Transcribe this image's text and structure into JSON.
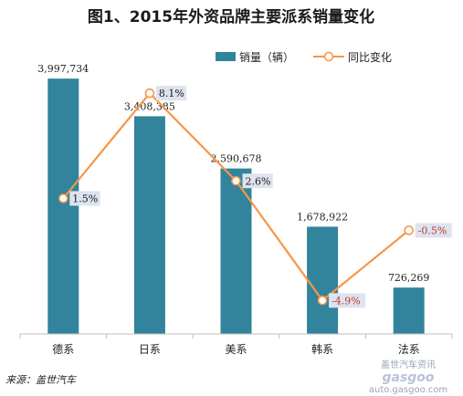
{
  "chart_data": {
    "type": "bar",
    "title": "图1、2015年外资品牌主要派系销量变化",
    "categories": [
      "德系",
      "日系",
      "美系",
      "韩系",
      "法系"
    ],
    "series": [
      {
        "name": "销量（辆）",
        "type": "bar",
        "values": [
          3997734,
          3408385,
          2590678,
          1678922,
          726269
        ],
        "labels": [
          "3,997,734",
          "3,408,385",
          "2,590,678",
          "1,678,922",
          "726,269"
        ],
        "color": "#31849b"
      },
      {
        "name": "同比变化",
        "type": "line",
        "values": [
          1.5,
          8.1,
          2.6,
          -4.9,
          -0.5
        ],
        "labels": [
          "1.5%",
          "8.1%",
          "2.6%",
          "-4.9%",
          "-0.5%"
        ],
        "color": "#f79646"
      }
    ],
    "ylim": [
      0,
      4000000
    ],
    "y2lim": [
      -7,
      12
    ],
    "grid": false,
    "legend": "top-right"
  },
  "source": "来源：盖世汽车",
  "watermark": {
    "logo": "gasgoo",
    "tag": "盖世汽车资讯",
    "url": "auto.gasgoo.com"
  },
  "colors": {
    "bar": "#31849b",
    "line": "#f79646",
    "positive_label_text": "#1a1a1a",
    "negative_label_text": "#c0392b",
    "label_box": "#dde3ef"
  }
}
